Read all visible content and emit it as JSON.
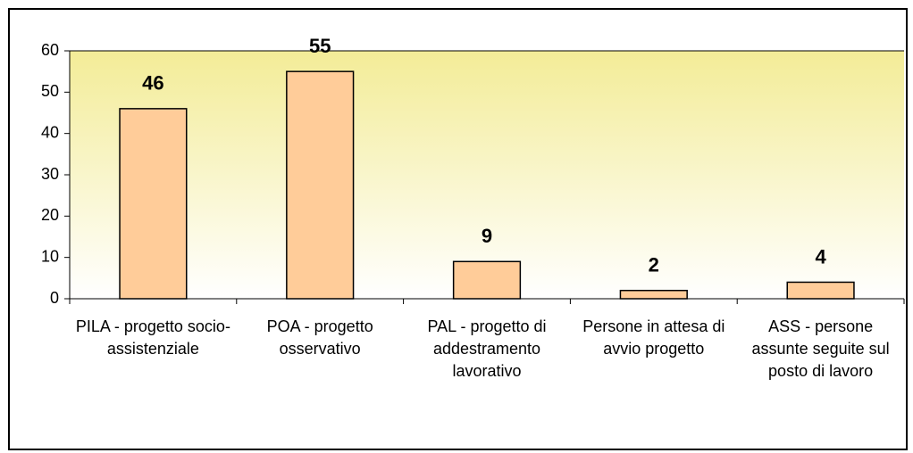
{
  "chart_data": {
    "type": "bar",
    "categories": [
      "PILA - progetto socio-assistenziale",
      "POA - progetto osservativo",
      "PAL - progetto di addestramento lavorativo",
      "Persone in attesa di avvio progetto",
      "ASS - persone assunte seguite sul posto di lavoro"
    ],
    "values": [
      46,
      55,
      9,
      2,
      4
    ],
    "color": "#ffcc99",
    "ylim": [
      0,
      60
    ],
    "yticks": [
      0,
      10,
      20,
      30,
      40,
      50,
      60
    ],
    "grid": false
  }
}
